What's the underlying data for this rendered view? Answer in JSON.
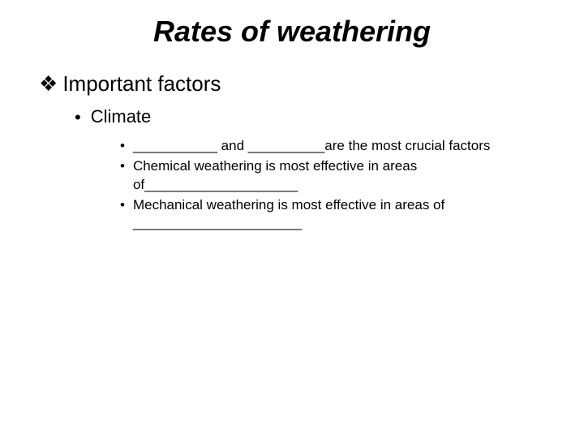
{
  "title": "Rates of weathering",
  "lvl1": {
    "bullet": "❖",
    "text": "Important factors"
  },
  "lvl2": {
    "bullet": "•",
    "text": "Climate"
  },
  "lvl3": {
    "bullet": "•",
    "items": [
      "___________ and __________are the most crucial factors",
      "Chemical weathering is most effective in areas of____________________",
      "Mechanical weathering is most effective in areas of ______________________"
    ]
  },
  "colors": {
    "background": "#ffffff",
    "text": "#000000"
  }
}
